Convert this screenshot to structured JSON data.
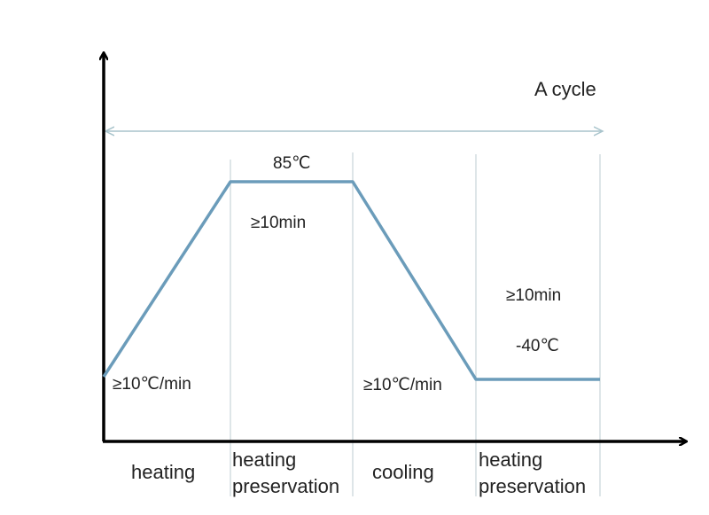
{
  "colors": {
    "curve": "#6b9cba",
    "axis": "#000000",
    "divider": "#c9d4d9",
    "cycle_arrow": "#a9c4cc"
  },
  "cycle_label": "A cycle",
  "high_temp": "85℃",
  "high_duration": "≥10min",
  "low_duration": "≥10min",
  "low_temp": "-40℃",
  "heating_rate": "≥10℃/min",
  "cooling_rate": "≥10℃/min",
  "phases": {
    "heating": "heating",
    "heating_preservation_1": [
      "heating",
      "preservation"
    ],
    "cooling": "cooling",
    "heating_preservation_2": [
      "heating",
      "preservation"
    ]
  }
}
